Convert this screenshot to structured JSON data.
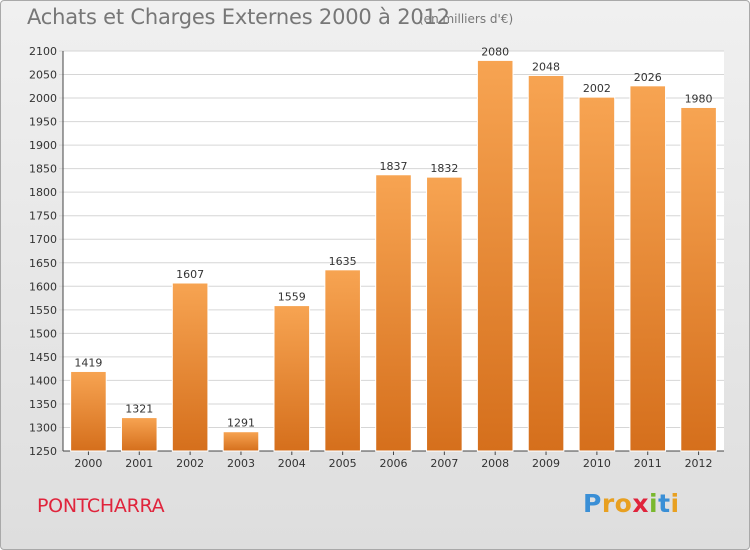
{
  "header": {
    "title": "Achats et Charges Externes 2000 à 2012",
    "unit": "(en milliers d'€)"
  },
  "footer": {
    "town": "PONTCHARRA",
    "brand_letters": [
      "P",
      "r",
      "o",
      "x",
      "i",
      "t",
      "i"
    ],
    "brand_colors": [
      "#3a8fd6",
      "#e8a020",
      "#e8a020",
      "#e0243c",
      "#7ab82e",
      "#3a8fd6",
      "#e8a020"
    ]
  },
  "chart_data": {
    "type": "bar",
    "title": "Achats et Charges Externes 2000 à 2012",
    "subtitle": "(en milliers d'€)",
    "xlabel": "",
    "ylabel": "",
    "categories": [
      "2000",
      "2001",
      "2002",
      "2003",
      "2004",
      "2005",
      "2006",
      "2007",
      "2008",
      "2009",
      "2010",
      "2011",
      "2012"
    ],
    "values": [
      1419,
      1321,
      1607,
      1291,
      1559,
      1635,
      1837,
      1832,
      2080,
      2048,
      2002,
      2026,
      1980
    ],
    "ylim": [
      1250,
      2100
    ],
    "yticks": [
      1250,
      1300,
      1350,
      1400,
      1450,
      1500,
      1550,
      1600,
      1650,
      1700,
      1750,
      1800,
      1850,
      1900,
      1950,
      2000,
      2050,
      2100
    ],
    "grid": true,
    "bar_color_top": "#f7a452",
    "bar_color_bottom": "#d56f1c"
  }
}
